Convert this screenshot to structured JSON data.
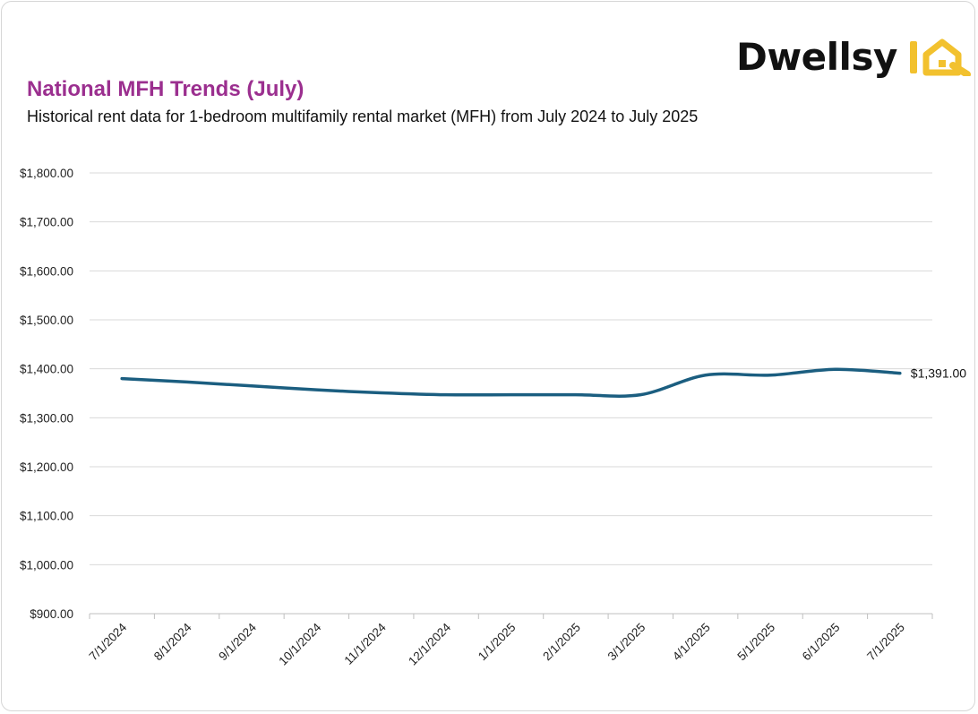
{
  "header": {
    "title": "National MFH Trends (July)",
    "subtitle": "Historical rent data for 1-bedroom multifamily rental market (MFH) from July 2024 to July 2025"
  },
  "logo": {
    "word": "Dwellsy",
    "suffix": "IQ",
    "word_color": "#111111",
    "suffix_color": "#f2c12e"
  },
  "colors": {
    "title": "#9b2f8f",
    "line": "#1b5e80",
    "grid": "#d9d9d9"
  },
  "chart_data": {
    "type": "line",
    "title": "National MFH Trends (July)",
    "subtitle": "Historical rent data for 1-bedroom multifamily rental market (MFH) from July 2024 to July 2025",
    "xlabel": "",
    "ylabel": "",
    "categories": [
      "7/1/2024",
      "8/1/2024",
      "9/1/2024",
      "10/1/2024",
      "11/1/2024",
      "12/1/2024",
      "1/1/2025",
      "2/1/2025",
      "3/1/2025",
      "4/1/2025",
      "5/1/2025",
      "6/1/2025",
      "7/1/2025"
    ],
    "series": [
      {
        "values": [
          1380,
          1373,
          1365,
          1357,
          1351,
          1347,
          1347,
          1347,
          1347,
          1387,
          1387,
          1399,
          1391
        ]
      }
    ],
    "y_ticks": [
      "$900.00",
      "$1,000.00",
      "$1,100.00",
      "$1,200.00",
      "$1,300.00",
      "$1,400.00",
      "$1,500.00",
      "$1,600.00",
      "$1,700.00",
      "$1,800.00"
    ],
    "ylim": [
      900,
      1800
    ],
    "grid": true,
    "smooth": true,
    "last_point_label": "$1,391.00"
  }
}
